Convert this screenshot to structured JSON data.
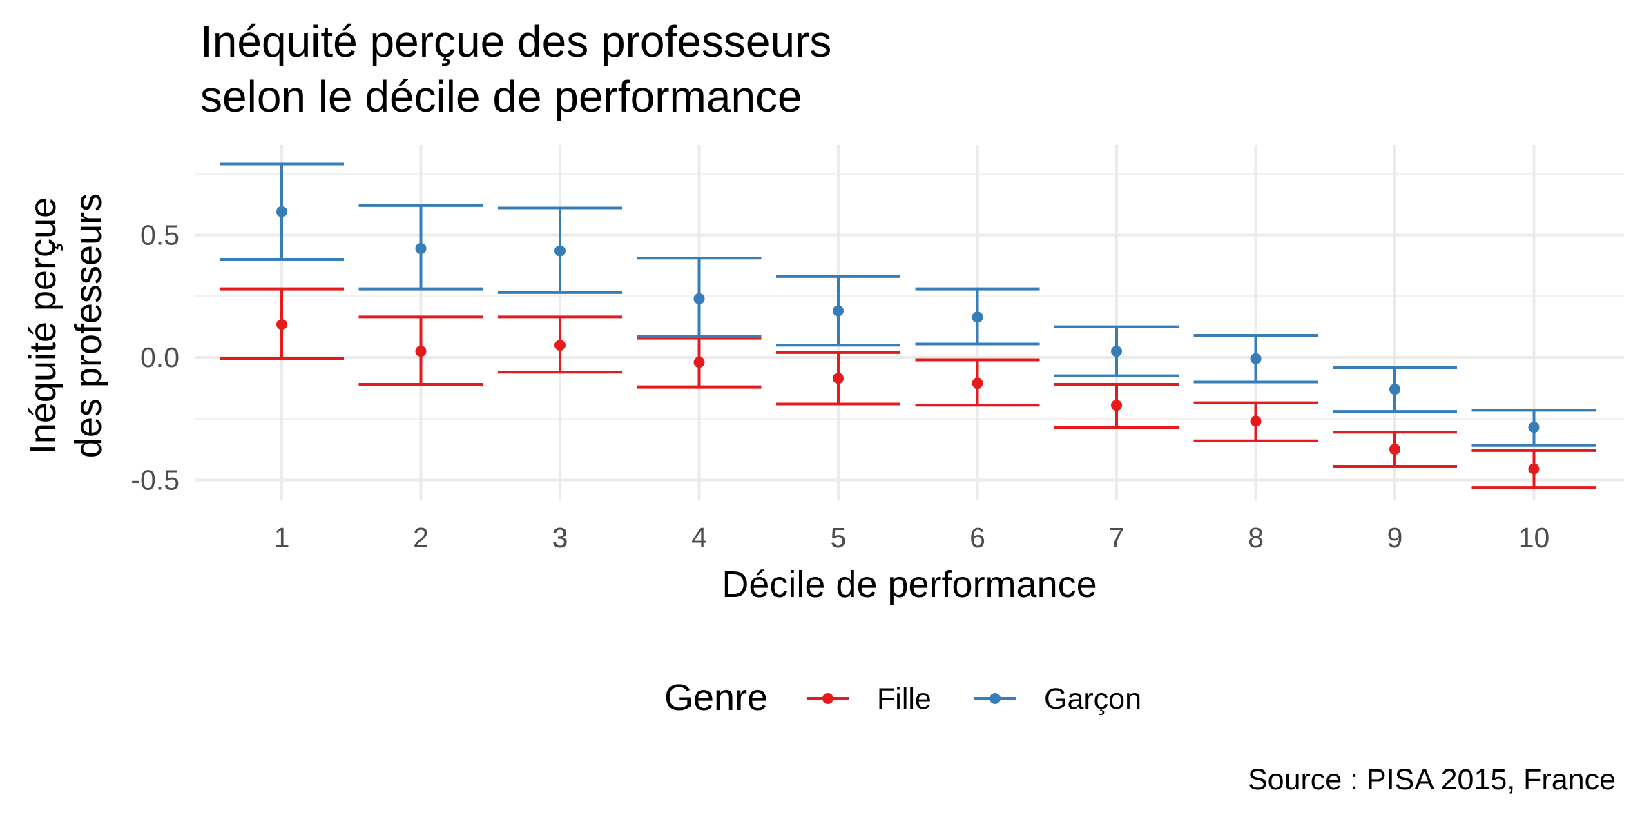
{
  "chart_data": {
    "type": "errorbar",
    "title": "Inéquité perçue des professeurs\nselon le décile de performance",
    "xlabel": "Décile de performance",
    "ylabel": "Inéquité perçue\ndes professeurs",
    "caption": "Source : PISA 2015, France",
    "legend_title": "Genre",
    "legend_position": "bottom",
    "grid": true,
    "categories": [
      "1",
      "2",
      "3",
      "4",
      "5",
      "6",
      "7",
      "8",
      "9",
      "10"
    ],
    "y_ticks": [
      -0.5,
      0.0,
      0.5
    ],
    "y_tick_labels": [
      "-0.5",
      "0.0",
      "0.5"
    ],
    "ylim": [
      -0.58,
      0.85
    ],
    "series": [
      {
        "name": "Fille",
        "color": "#e41a1c",
        "values": [
          0.135,
          0.025,
          0.05,
          -0.02,
          -0.085,
          -0.105,
          -0.195,
          -0.26,
          -0.375,
          -0.455
        ],
        "lower": [
          -0.005,
          -0.11,
          -0.06,
          -0.12,
          -0.19,
          -0.195,
          -0.285,
          -0.34,
          -0.445,
          -0.53
        ],
        "upper": [
          0.28,
          0.165,
          0.165,
          0.08,
          0.02,
          -0.01,
          -0.11,
          -0.185,
          -0.305,
          -0.38
        ]
      },
      {
        "name": "Garçon",
        "color": "#377eb8",
        "values": [
          0.595,
          0.445,
          0.435,
          0.24,
          0.19,
          0.165,
          0.025,
          -0.005,
          -0.13,
          -0.285
        ],
        "lower": [
          0.4,
          0.28,
          0.265,
          0.085,
          0.05,
          0.055,
          -0.075,
          -0.1,
          -0.22,
          -0.36
        ],
        "upper": [
          0.79,
          0.62,
          0.61,
          0.405,
          0.33,
          0.28,
          0.125,
          0.09,
          -0.04,
          -0.215
        ]
      }
    ]
  }
}
